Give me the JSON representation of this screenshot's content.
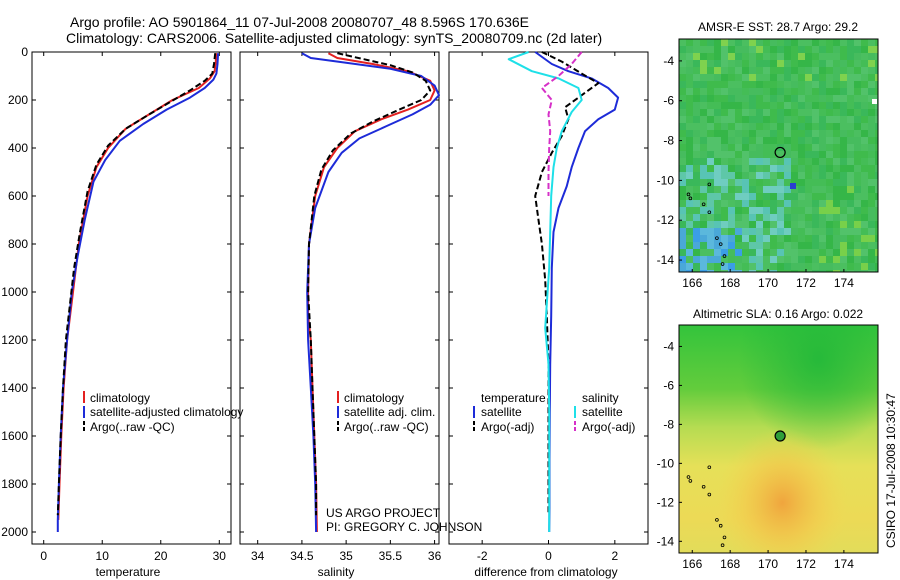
{
  "header": {
    "title_line1": "Argo profile: AO 5901864_11 07-Jul-2008 20080707_48 8.596S 170.636E",
    "title_line2": "Climatology: CARS2006. Satellite-adjusted climatology: synTS_20080709.nc (2d later)"
  },
  "credits": {
    "project": "US ARGO PROJECT",
    "pi": "PI: GREGORY C. JOHNSON",
    "csiro": "CSIRO 17-Jul-2008 10:30:47"
  },
  "colors": {
    "climatology": "#e32020",
    "satellite": "#1d2bd8",
    "argo": "#000000",
    "salinity_satellite": "#1ee0e8",
    "salinity_argo": "#d630c8",
    "sst_marker": "#000000",
    "sla_marker": "#2e9e3a"
  },
  "chart_data": [
    {
      "type": "line",
      "panel": "temperature",
      "xlabel": "temperature",
      "ylabel": "",
      "xlim": [
        -2,
        32
      ],
      "ylim": [
        2050,
        0
      ],
      "xticks": [
        0,
        10,
        20,
        30
      ],
      "yticks": [
        0,
        200,
        400,
        600,
        800,
        1000,
        1200,
        1400,
        1600,
        1800,
        2000
      ],
      "legend": [
        {
          "label": "climatology",
          "series": "climatology"
        },
        {
          "label": "satellite-adjusted climatology",
          "series": "satellite"
        },
        {
          "label": "Argo(..raw -QC)",
          "series": "argo"
        }
      ],
      "series": [
        {
          "name": "climatology",
          "color": "#e32020",
          "dash": false,
          "points": [
            [
              29.5,
              5
            ],
            [
              29.4,
              40
            ],
            [
              29.2,
              80
            ],
            [
              28.4,
              110
            ],
            [
              26.5,
              150
            ],
            [
              22,
              200
            ],
            [
              18,
              260
            ],
            [
              14,
              320
            ],
            [
              11,
              400
            ],
            [
              9,
              480
            ],
            [
              7.5,
              600
            ],
            [
              6,
              800
            ],
            [
              5,
              1000
            ],
            [
              4,
              1200
            ],
            [
              3.4,
              1400
            ],
            [
              3,
              1600
            ],
            [
              2.7,
              1800
            ],
            [
              2.5,
              1950
            ]
          ]
        },
        {
          "name": "satellite",
          "color": "#1d2bd8",
          "dash": false,
          "points": [
            [
              29.8,
              5
            ],
            [
              29.7,
              50
            ],
            [
              29.5,
              90
            ],
            [
              29,
              115
            ],
            [
              27.5,
              150
            ],
            [
              25,
              190
            ],
            [
              21,
              240
            ],
            [
              17,
              300
            ],
            [
              13,
              370
            ],
            [
              10.5,
              450
            ],
            [
              8.5,
              540
            ],
            [
              7,
              700
            ],
            [
              5.8,
              850
            ],
            [
              4.8,
              1000
            ],
            [
              4,
              1200
            ],
            [
              3.3,
              1400
            ],
            [
              2.9,
              1600
            ],
            [
              2.6,
              1800
            ],
            [
              2.4,
              1950
            ],
            [
              2.4,
              2000
            ]
          ]
        },
        {
          "name": "argo",
          "color": "#000000",
          "dash": true,
          "points": [
            [
              29.3,
              5
            ],
            [
              29.1,
              50
            ],
            [
              28.8,
              90
            ],
            [
              27.5,
              120
            ],
            [
              25,
              160
            ],
            [
              21.5,
              210
            ],
            [
              18,
              260
            ],
            [
              14,
              320
            ],
            [
              11,
              390
            ],
            [
              9,
              470
            ],
            [
              7.5,
              580
            ],
            [
              6.2,
              750
            ],
            [
              5.2,
              900
            ],
            [
              4.5,
              1050
            ],
            [
              3.8,
              1200
            ],
            [
              3.3,
              1400
            ],
            [
              2.9,
              1600
            ],
            [
              2.6,
              1800
            ],
            [
              2.4,
              1930
            ]
          ]
        }
      ]
    },
    {
      "type": "line",
      "panel": "salinity",
      "xlabel": "salinity",
      "ylabel": "",
      "xlim": [
        33.8,
        36.05
      ],
      "ylim": [
        2050,
        0
      ],
      "xticks": [
        34,
        34.5,
        35,
        35.5,
        36
      ],
      "xticklabels": [
        "34",
        "34.5",
        "35",
        "35.5",
        "36"
      ],
      "legend": [
        {
          "label": "climatology",
          "series": "climatology"
        },
        {
          "label": "satellite adj. clim.",
          "series": "satellite"
        },
        {
          "label": "Argo(..raw -QC)",
          "series": "argo"
        }
      ],
      "series": [
        {
          "name": "climatology",
          "color": "#e32020",
          "dash": false,
          "points": [
            [
              34.8,
              5
            ],
            [
              34.9,
              25
            ],
            [
              35.3,
              50
            ],
            [
              35.7,
              80
            ],
            [
              35.95,
              120
            ],
            [
              36.0,
              160
            ],
            [
              35.95,
              200
            ],
            [
              35.7,
              240
            ],
            [
              35.4,
              280
            ],
            [
              35.1,
              330
            ],
            [
              34.9,
              400
            ],
            [
              34.75,
              480
            ],
            [
              34.65,
              600
            ],
            [
              34.58,
              800
            ],
            [
              34.57,
              1000
            ],
            [
              34.57,
              1100
            ],
            [
              34.6,
              1200
            ],
            [
              34.62,
              1400
            ],
            [
              34.64,
              1600
            ],
            [
              34.66,
              1800
            ],
            [
              34.67,
              2000
            ]
          ]
        },
        {
          "name": "satellite",
          "color": "#1d2bd8",
          "dash": false,
          "points": [
            [
              34.5,
              5
            ],
            [
              34.6,
              25
            ],
            [
              35.0,
              45
            ],
            [
              35.5,
              70
            ],
            [
              35.85,
              100
            ],
            [
              36.0,
              140
            ],
            [
              36.05,
              180
            ],
            [
              35.95,
              220
            ],
            [
              35.75,
              260
            ],
            [
              35.45,
              310
            ],
            [
              35.15,
              360
            ],
            [
              34.95,
              420
            ],
            [
              34.8,
              500
            ],
            [
              34.65,
              650
            ],
            [
              34.58,
              800
            ],
            [
              34.56,
              1000
            ],
            [
              34.57,
              1200
            ],
            [
              34.6,
              1400
            ],
            [
              34.63,
              1600
            ],
            [
              34.65,
              1800
            ],
            [
              34.66,
              2000
            ]
          ]
        },
        {
          "name": "argo",
          "color": "#000000",
          "dash": true,
          "points": [
            [
              34.9,
              5
            ],
            [
              35.2,
              30
            ],
            [
              35.5,
              55
            ],
            [
              35.75,
              85
            ],
            [
              35.9,
              120
            ],
            [
              35.95,
              160
            ],
            [
              35.85,
              200
            ],
            [
              35.6,
              240
            ],
            [
              35.3,
              290
            ],
            [
              35.05,
              340
            ],
            [
              34.85,
              410
            ],
            [
              34.72,
              490
            ],
            [
              34.64,
              600
            ],
            [
              34.58,
              800
            ],
            [
              34.57,
              1000
            ],
            [
              34.6,
              1200
            ],
            [
              34.62,
              1400
            ],
            [
              34.64,
              1600
            ],
            [
              34.66,
              1800
            ],
            [
              34.66,
              1930
            ]
          ]
        }
      ]
    },
    {
      "type": "line",
      "panel": "difference",
      "xlabel": "difference from climatology",
      "ylabel": "",
      "xlim": [
        -3,
        3
      ],
      "ylim": [
        2050,
        0
      ],
      "xticks": [
        -2,
        0,
        2
      ],
      "legend_headers": {
        "temperature": "temperature",
        "salinity": "salinity"
      },
      "legend": [
        {
          "label": "satellite",
          "series": "t_satellite"
        },
        {
          "label": "Argo(-adj)",
          "series": "t_argo"
        },
        {
          "label": "satellite",
          "series": "s_satellite"
        },
        {
          "label": "Argo(-adj)",
          "series": "s_argo"
        }
      ],
      "series": [
        {
          "name": "t_satellite",
          "color": "#1d2bd8",
          "dash": false,
          "points": [
            [
              -0.4,
              0
            ],
            [
              0.1,
              50
            ],
            [
              0.6,
              80
            ],
            [
              1.3,
              110
            ],
            [
              1.8,
              150
            ],
            [
              2.1,
              190
            ],
            [
              2.0,
              240
            ],
            [
              1.5,
              280
            ],
            [
              1.1,
              330
            ],
            [
              0.9,
              400
            ],
            [
              0.7,
              480
            ],
            [
              0.55,
              560
            ],
            [
              0.3,
              650
            ],
            [
              0.15,
              750
            ],
            [
              0.1,
              900
            ],
            [
              0.08,
              1100
            ],
            [
              0.05,
              1300
            ],
            [
              0.04,
              1500
            ],
            [
              0.03,
              1700
            ],
            [
              0.03,
              1900
            ],
            [
              0.02,
              2000
            ]
          ]
        },
        {
          "name": "t_argo",
          "color": "#000000",
          "dash": true,
          "points": [
            [
              -0.2,
              0
            ],
            [
              0.4,
              40
            ],
            [
              1.0,
              90
            ],
            [
              1.5,
              130
            ],
            [
              1.0,
              180
            ],
            [
              0.5,
              230
            ],
            [
              0.6,
              280
            ],
            [
              0.4,
              350
            ],
            [
              0.1,
              420
            ],
            [
              -0.2,
              500
            ],
            [
              -0.4,
              600
            ],
            [
              -0.3,
              700
            ],
            [
              -0.2,
              800
            ],
            [
              -0.1,
              950
            ],
            [
              -0.05,
              1100
            ],
            [
              0.0,
              1300
            ],
            [
              0.0,
              1500
            ],
            [
              0.0,
              1700
            ],
            [
              0.0,
              1930
            ]
          ]
        },
        {
          "name": "s_satellite",
          "color": "#1ee0e8",
          "dash": false,
          "points": [
            [
              -0.6,
              0
            ],
            [
              -1.2,
              30
            ],
            [
              -0.5,
              80
            ],
            [
              0.3,
              110
            ],
            [
              0.9,
              150
            ],
            [
              1.0,
              200
            ],
            [
              0.7,
              250
            ],
            [
              0.4,
              330
            ],
            [
              0.25,
              400
            ],
            [
              0.15,
              480
            ],
            [
              0.08,
              600
            ],
            [
              0.05,
              750
            ],
            [
              0.02,
              900
            ],
            [
              -0.05,
              1050
            ],
            [
              -0.1,
              1150
            ],
            [
              0.0,
              1300
            ],
            [
              0.02,
              1500
            ],
            [
              0.02,
              1700
            ],
            [
              0.02,
              2000
            ]
          ]
        },
        {
          "name": "s_argo",
          "color": "#d630c8",
          "dash": true,
          "points": [
            [
              1.0,
              0
            ],
            [
              0.7,
              50
            ],
            [
              0.3,
              100
            ],
            [
              -0.2,
              150
            ],
            [
              0.1,
              200
            ],
            [
              0.0,
              260
            ],
            [
              0.05,
              330
            ],
            [
              0.02,
              400
            ],
            [
              0.0,
              500
            ],
            [
              0.0,
              600
            ]
          ]
        }
      ]
    }
  ],
  "maps": [
    {
      "name": "sst",
      "title": "AMSR-E SST: 28.7 Argo: 29.2",
      "xticks": [
        166,
        168,
        170,
        172,
        174
      ],
      "yticks": [
        -4,
        -6,
        -8,
        -10,
        -12,
        -14
      ],
      "xlim": [
        165.3,
        175.8
      ],
      "ylim": [
        -14.6,
        -2.9
      ],
      "marker": {
        "lon": 170.636,
        "lat": -8.596,
        "filled": false
      },
      "base_color": "#3cb84a"
    },
    {
      "name": "sla",
      "title": "Altimetric SLA: 0.16 Argo: 0.022",
      "xticks": [
        166,
        168,
        170,
        172,
        174
      ],
      "yticks": [
        -4,
        -6,
        -8,
        -10,
        -12,
        -14
      ],
      "xlim": [
        165.3,
        175.8
      ],
      "ylim": [
        -14.6,
        -2.9
      ],
      "marker": {
        "lon": 170.636,
        "lat": -8.596,
        "filled": true
      },
      "base_color": "#2fba3a"
    }
  ]
}
